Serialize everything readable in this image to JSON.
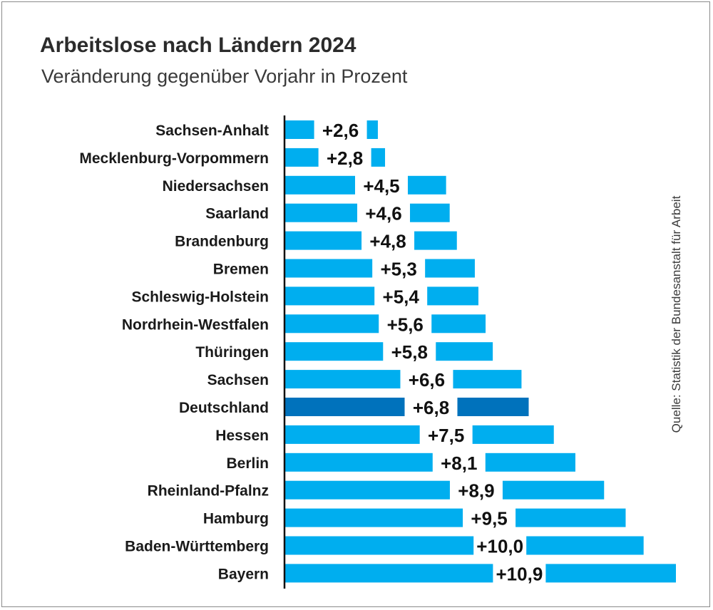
{
  "chart_data": {
    "type": "bar",
    "orientation": "horizontal",
    "title": "Arbeitslose nach Ländern 2024",
    "subtitle": "Veränderung gegenüber Vorjahr in Prozent",
    "source": "Quelle: Statistik der Bundesanstalt für Arbeit",
    "categories": [
      "Sachsen-Anhalt",
      "Mecklenburg-Vorpommern",
      "Niedersachsen",
      "Saarland",
      "Brandenburg",
      "Bremen",
      "Schleswig-Holstein",
      "Nordrhein-Westfalen",
      "Thüringen",
      "Sachsen",
      "Deutschland",
      "Hessen",
      "Berlin",
      "Rheinland-Pfalnz",
      "Hamburg",
      "Baden-Württemberg",
      "Bayern"
    ],
    "values": [
      2.6,
      2.8,
      4.5,
      4.6,
      4.8,
      5.3,
      5.4,
      5.6,
      5.8,
      6.6,
      6.8,
      7.5,
      8.1,
      8.9,
      9.5,
      10.0,
      10.9
    ],
    "value_labels": [
      "+2,6",
      "+2,8",
      "+4,5",
      "+4,6",
      "+4,8",
      "+5,3",
      "+5,4",
      "+5,6",
      "+5,8",
      "+6,6",
      "+6,8",
      "+7,5",
      "+8,1",
      "+8,9",
      "+9,5",
      "+10,0",
      "+10,9"
    ],
    "highlight": "Deutschland",
    "xlim": [
      0,
      10.9
    ],
    "grid": false,
    "colors": {
      "bar": "#00aeef",
      "highlight": "#0072bc",
      "axis": "#111111"
    }
  }
}
